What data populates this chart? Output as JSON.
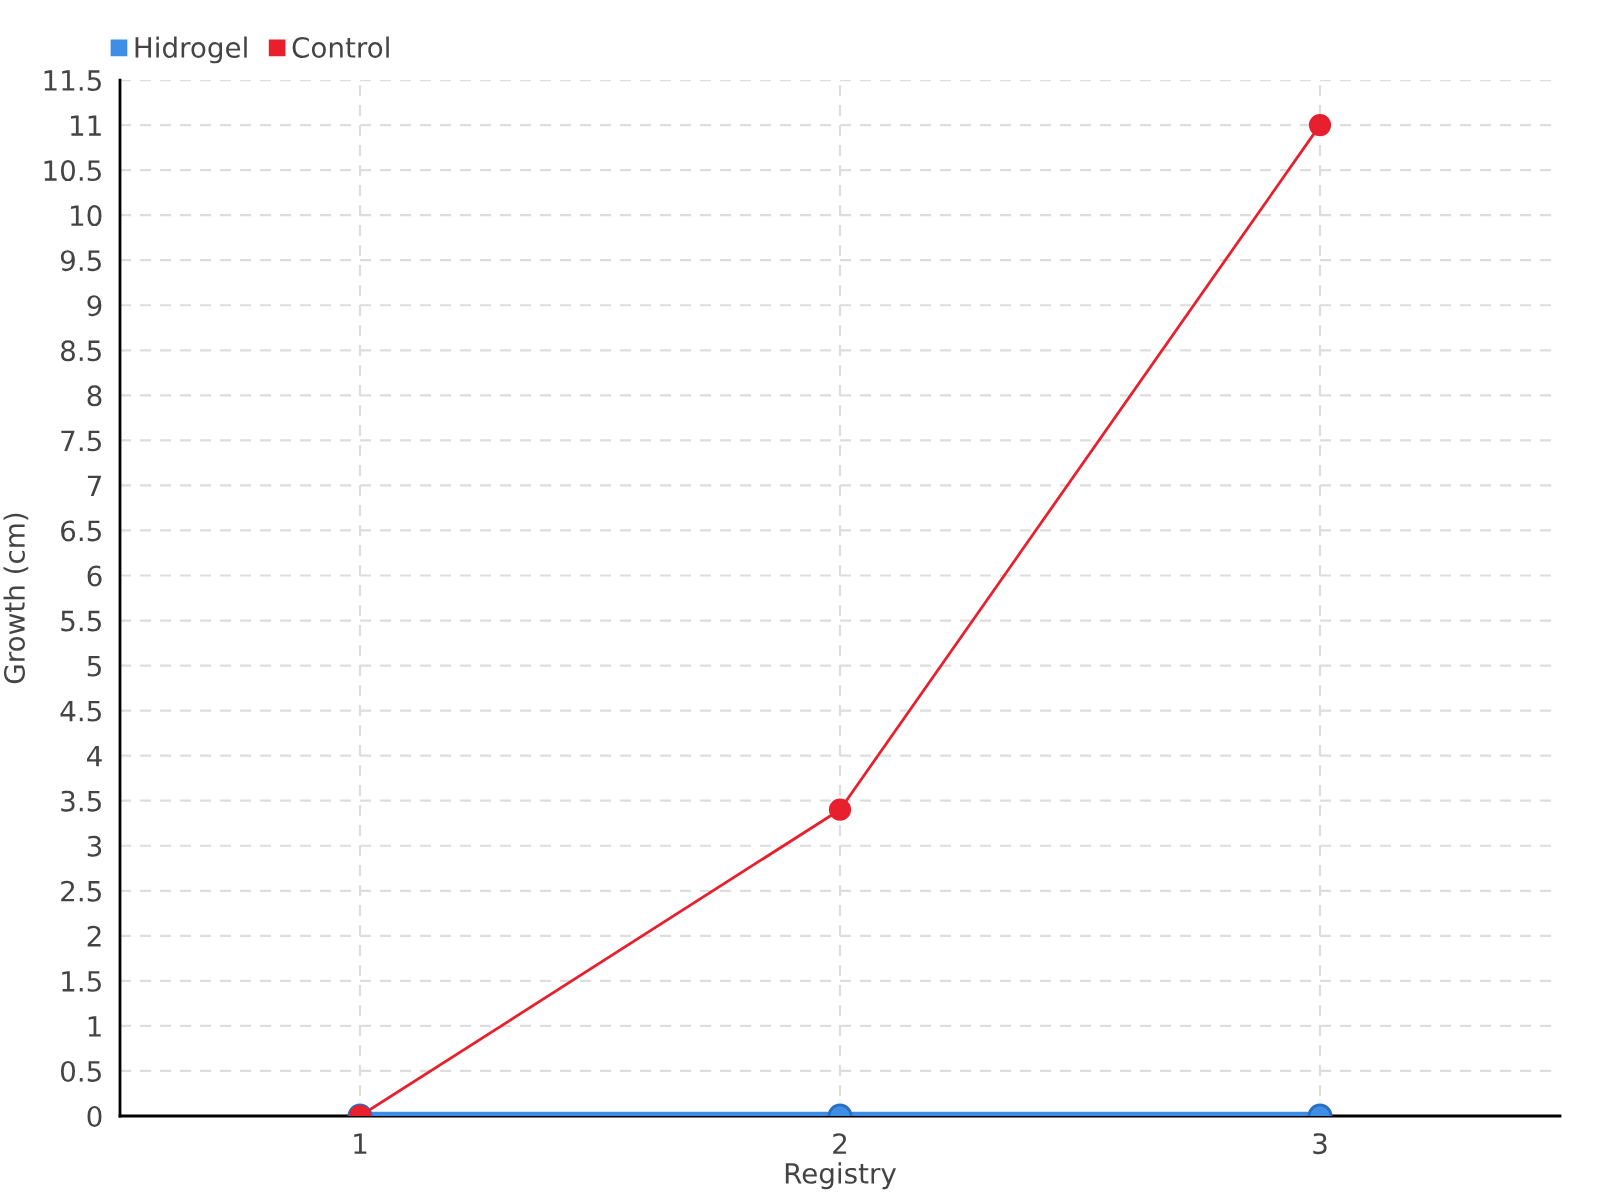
{
  "chart_data": {
    "type": "line",
    "xlabel": "Registry",
    "ylabel": "Growth (cm)",
    "x": [
      1,
      2,
      3
    ],
    "series": [
      {
        "name": "Hidrogel",
        "color": "#3e8ee8",
        "values": [
          0,
          0,
          0
        ]
      },
      {
        "name": "Control",
        "color": "#e8202e",
        "values": [
          0,
          3.4,
          11
        ]
      }
    ],
    "xlim": [
      0.5,
      3.5
    ],
    "xticks": [
      1,
      2,
      3
    ],
    "ylim": [
      0,
      11.5
    ],
    "yticks": [
      0,
      0.5,
      1,
      1.5,
      2,
      2.5,
      3,
      3.5,
      4,
      4.5,
      5,
      5.5,
      6,
      6.5,
      7,
      7.5,
      8,
      8.5,
      9,
      9.5,
      10,
      10.5,
      11,
      11.5
    ],
    "grid": true,
    "legend": "top left",
    "marker": "circle",
    "line_style": "solid"
  }
}
